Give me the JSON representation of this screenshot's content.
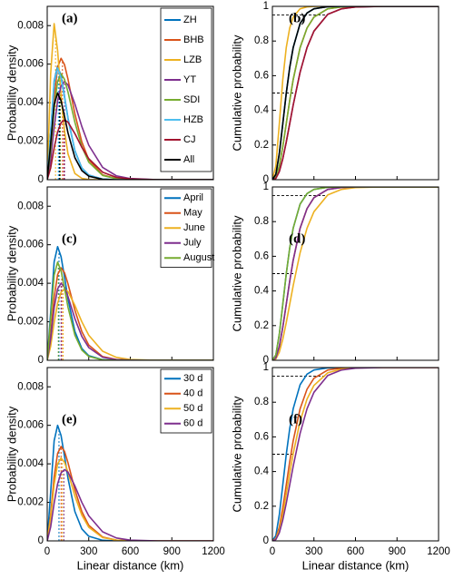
{
  "chart_data": [
    {
      "type": "line",
      "panel_label": "(a)",
      "ylabel": "Probability density",
      "xlim": [
        0,
        1200
      ],
      "xticks": [
        0,
        300,
        600,
        900,
        1200
      ],
      "show_xtick_labels": false,
      "ylim": [
        0,
        0.009
      ],
      "yticks": [
        0,
        0.002,
        0.004,
        0.006,
        0.008
      ],
      "legend": "upper right",
      "x": [
        0,
        25,
        50,
        75,
        100,
        125,
        150,
        200,
        250,
        300,
        400,
        500,
        600,
        800,
        1200
      ],
      "series": [
        {
          "name": "ZH",
          "color": "#0072BD",
          "median": 85,
          "values": [
            0,
            0.00248,
            0.00511,
            0.0059,
            0.00538,
            0.00432,
            0.00319,
            0.0015,
            0.00061,
            0.00024,
            3e-05,
            0,
            0,
            0,
            0
          ]
        },
        {
          "name": "BHB",
          "color": "#D95319",
          "median": 110,
          "values": [
            0,
            0.00176,
            0.00428,
            0.00584,
            0.0063,
            0.00597,
            0.00522,
            0.00341,
            0.00196,
            0.00104,
            0.00025,
            5e-05,
            1e-05,
            0,
            0
          ]
        },
        {
          "name": "LZB",
          "color": "#EDB120",
          "median": 60,
          "values": [
            0,
            0.00551,
            0.0081,
            0.00671,
            0.00438,
            0.00252,
            0.00134,
            0.00032,
            7e-05,
            1e-05,
            0,
            0,
            0,
            0,
            0
          ]
        },
        {
          "name": "YT",
          "color": "#7E2F8E",
          "median": 125,
          "values": [
            0,
            0.00101,
            0.00271,
            0.00409,
            0.00487,
            0.0051,
            0.00492,
            0.00393,
            0.00276,
            0.00179,
            0.00064,
            0.0002,
            6e-05,
            0,
            0
          ]
        },
        {
          "name": "SDI",
          "color": "#77AC30",
          "median": 95,
          "values": [
            0,
            0.00154,
            0.00374,
            0.0051,
            0.0055,
            0.00521,
            0.00455,
            0.00298,
            0.00171,
            0.00091,
            0.00022,
            5e-05,
            1e-05,
            0,
            0
          ]
        },
        {
          "name": "HZB",
          "color": "#4DBEEE",
          "median": 80,
          "values": [
            0,
            0.00244,
            0.00502,
            0.0058,
            0.00529,
            0.00425,
            0.00314,
            0.00147,
            0.0006,
            0.00023,
            3e-05,
            0,
            0,
            0,
            0
          ]
        },
        {
          "name": "CJ",
          "color": "#A2142F",
          "median": 120,
          "values": [
            0,
            0.00061,
            0.00165,
            0.00248,
            0.00296,
            0.0031,
            0.00299,
            0.00239,
            0.00168,
            0.00109,
            0.00039,
            0.00012,
            4e-05,
            0,
            0
          ]
        },
        {
          "name": "All",
          "color": "#000000",
          "median": 90,
          "values": [
            0,
            0.00189,
            0.0039,
            0.0045,
            0.0041,
            0.00329,
            0.00243,
            0.00114,
            0.00047,
            0.00018,
            2e-05,
            0,
            0,
            0,
            0
          ]
        }
      ]
    },
    {
      "type": "line",
      "panel_label": "(b)",
      "ylabel": "Cumulative probability",
      "xlim": [
        0,
        1200
      ],
      "xticks": [
        0,
        300,
        600,
        900,
        1200
      ],
      "show_xtick_labels": false,
      "ylim": [
        0,
        1
      ],
      "yticks": [
        0,
        0.2,
        0.4,
        0.6,
        0.8,
        1
      ],
      "hlines": [
        0.5,
        0.95
      ],
      "x": [
        0,
        25,
        50,
        75,
        100,
        125,
        150,
        200,
        250,
        300,
        400,
        500,
        600,
        800,
        1200
      ],
      "series": [
        {
          "color": "#0072BD",
          "values": [
            0,
            0.031,
            0.151,
            0.323,
            0.498,
            0.647,
            0.762,
            0.901,
            0.962,
            0.986,
            0.998,
            1,
            1,
            1,
            1
          ]
        },
        {
          "color": "#D95319",
          "values": [
            0,
            0.014,
            0.08,
            0.191,
            0.323,
            0.456,
            0.577,
            0.762,
            0.875,
            0.938,
            0.986,
            0.997,
            0.9995,
            1,
            1
          ]
        },
        {
          "color": "#EDB120",
          "values": [
            0,
            0.08,
            0.323,
            0.577,
            0.762,
            0.875,
            0.938,
            0.986,
            0.997,
            0.9995,
            1,
            1,
            1,
            1,
            1
          ]
        },
        {
          "color": "#7E2F8E",
          "values": [
            0,
            0.008,
            0.047,
            0.121,
            0.217,
            0.323,
            0.43,
            0.62,
            0.762,
            0.857,
            0.954,
            0.986,
            0.996,
            1,
            1
          ]
        },
        {
          "color": "#77AC30",
          "values": [
            0,
            0.014,
            0.08,
            0.191,
            0.323,
            0.456,
            0.577,
            0.762,
            0.875,
            0.938,
            0.986,
            0.997,
            0.9995,
            1,
            1
          ]
        },
        {
          "color": "#4DBEEE",
          "values": [
            0,
            0.031,
            0.151,
            0.323,
            0.498,
            0.647,
            0.762,
            0.901,
            0.962,
            0.986,
            0.998,
            1,
            1,
            1,
            1
          ]
        },
        {
          "color": "#A2142F",
          "values": [
            0,
            0.008,
            0.047,
            0.121,
            0.217,
            0.323,
            0.43,
            0.62,
            0.762,
            0.857,
            0.954,
            0.986,
            0.996,
            1,
            1
          ]
        },
        {
          "color": "#000000",
          "values": [
            0,
            0.031,
            0.151,
            0.323,
            0.498,
            0.647,
            0.762,
            0.901,
            0.962,
            0.986,
            0.998,
            1,
            1,
            1,
            1
          ]
        }
      ]
    },
    {
      "type": "line",
      "panel_label": "(c)",
      "ylabel": "Probability density",
      "xlim": [
        0,
        1200
      ],
      "xticks": [
        0,
        300,
        600,
        900,
        1200
      ],
      "show_xtick_labels": false,
      "ylim": [
        0,
        0.009
      ],
      "yticks": [
        0,
        0.002,
        0.004,
        0.006,
        0.008
      ],
      "legend": "upper right",
      "x": [
        0,
        25,
        50,
        75,
        100,
        125,
        150,
        200,
        250,
        300,
        400,
        500,
        600,
        800,
        1200
      ],
      "series": [
        {
          "name": "April",
          "color": "#0072BD",
          "median": 85,
          "values": [
            0,
            0.00248,
            0.00511,
            0.0059,
            0.00538,
            0.00432,
            0.00319,
            0.0015,
            0.00061,
            0.00024,
            3e-05,
            0,
            0,
            0,
            0
          ]
        },
        {
          "name": "May",
          "color": "#D95319",
          "median": 105,
          "values": [
            0,
            0.00134,
            0.00326,
            0.00445,
            0.0048,
            0.00455,
            0.00397,
            0.0026,
            0.00149,
            0.00079,
            0.00019,
            4e-05,
            1e-05,
            0,
            0
          ]
        },
        {
          "name": "June",
          "color": "#EDB120",
          "median": 115,
          "values": [
            0,
            0.00073,
            0.00196,
            0.00296,
            0.00353,
            0.0037,
            0.00357,
            0.00285,
            0.002,
            0.0013,
            0.00047,
            0.00015,
            4e-05,
            0,
            0
          ]
        },
        {
          "name": "July",
          "color": "#7E2F8E",
          "median": 100,
          "values": [
            0,
            0.00112,
            0.00272,
            0.00371,
            0.004,
            0.00379,
            0.00331,
            0.00216,
            0.00124,
            0.00066,
            0.00016,
            3e-05,
            1e-05,
            0,
            0
          ]
        },
        {
          "name": "August",
          "color": "#77AC30",
          "median": 80,
          "values": [
            0,
            0.00215,
            0.00442,
            0.0051,
            0.00465,
            0.00373,
            0.00276,
            0.0013,
            0.00053,
            0.0002,
            2e-05,
            0,
            0,
            0,
            0
          ]
        }
      ]
    },
    {
      "type": "line",
      "panel_label": "(d)",
      "ylabel": "Cumulative probability",
      "xlim": [
        0,
        1200
      ],
      "xticks": [
        0,
        300,
        600,
        900,
        1200
      ],
      "show_xtick_labels": false,
      "ylim": [
        0,
        1
      ],
      "yticks": [
        0,
        0.2,
        0.4,
        0.6,
        0.8,
        1
      ],
      "hlines": [
        0.5,
        0.95
      ],
      "x": [
        0,
        25,
        50,
        75,
        100,
        125,
        150,
        200,
        250,
        300,
        400,
        500,
        600,
        800,
        1200
      ],
      "series": [
        {
          "color": "#0072BD",
          "values": [
            0,
            0.031,
            0.151,
            0.323,
            0.498,
            0.647,
            0.762,
            0.901,
            0.962,
            0.986,
            0.998,
            1,
            1,
            1,
            1
          ]
        },
        {
          "color": "#D95319",
          "values": [
            0,
            0.014,
            0.08,
            0.191,
            0.323,
            0.456,
            0.577,
            0.762,
            0.875,
            0.938,
            0.986,
            0.997,
            0.9995,
            1,
            1
          ]
        },
        {
          "color": "#EDB120",
          "values": [
            0,
            0.008,
            0.047,
            0.121,
            0.217,
            0.323,
            0.43,
            0.62,
            0.762,
            0.857,
            0.954,
            0.986,
            0.996,
            1,
            1
          ]
        },
        {
          "color": "#7E2F8E",
          "values": [
            0,
            0.014,
            0.08,
            0.191,
            0.323,
            0.456,
            0.577,
            0.762,
            0.875,
            0.938,
            0.986,
            0.997,
            0.9995,
            1,
            1
          ]
        },
        {
          "color": "#77AC30",
          "values": [
            0,
            0.031,
            0.151,
            0.323,
            0.498,
            0.647,
            0.762,
            0.901,
            0.962,
            0.986,
            0.998,
            1,
            1,
            1,
            1
          ]
        }
      ]
    },
    {
      "type": "line",
      "panel_label": "(e)",
      "ylabel": "Probability density",
      "xlabel": "Linear distance (km)",
      "xlim": [
        0,
        1200
      ],
      "xticks": [
        0,
        300,
        600,
        900,
        1200
      ],
      "show_xtick_labels": true,
      "ylim": [
        0,
        0.009
      ],
      "yticks": [
        0,
        0.002,
        0.004,
        0.006,
        0.008
      ],
      "legend": "upper right",
      "x": [
        0,
        25,
        50,
        75,
        100,
        125,
        150,
        200,
        250,
        300,
        400,
        500,
        600,
        800,
        1200
      ],
      "series": [
        {
          "name": "30 d",
          "color": "#0072BD",
          "median": 85,
          "values": [
            0,
            0.00253,
            0.0052,
            0.006,
            0.00547,
            0.00439,
            0.00325,
            0.00152,
            0.00062,
            0.00024,
            3e-05,
            0,
            0,
            0,
            0
          ]
        },
        {
          "name": "40 d",
          "color": "#D95319",
          "median": 100,
          "values": [
            0,
            0.00137,
            0.00333,
            0.00454,
            0.0049,
            0.00465,
            0.00406,
            0.00265,
            0.00152,
            0.00081,
            0.0002,
            4e-05,
            1e-05,
            0,
            0
          ]
        },
        {
          "name": "50 d",
          "color": "#EDB120",
          "median": 110,
          "values": [
            0,
            0.0012,
            0.00292,
            0.00399,
            0.0043,
            0.00408,
            0.00356,
            0.00233,
            0.00134,
            0.00071,
            0.00017,
            4e-05,
            1e-05,
            0,
            0
          ]
        },
        {
          "name": "60 d",
          "color": "#7E2F8E",
          "median": 120,
          "values": [
            0,
            0.00073,
            0.00196,
            0.00296,
            0.00353,
            0.0037,
            0.00357,
            0.00285,
            0.002,
            0.0013,
            0.00047,
            0.00015,
            4e-05,
            0,
            0
          ]
        }
      ]
    },
    {
      "type": "line",
      "panel_label": "(f)",
      "ylabel": "Cumulative probability",
      "xlabel": "Linear distance (km)",
      "xlim": [
        0,
        1200
      ],
      "xticks": [
        0,
        300,
        600,
        900,
        1200
      ],
      "show_xtick_labels": true,
      "ylim": [
        0,
        1
      ],
      "yticks": [
        0,
        0.2,
        0.4,
        0.6,
        0.8,
        1
      ],
      "hlines": [
        0.5,
        0.95
      ],
      "x": [
        0,
        25,
        50,
        75,
        100,
        125,
        150,
        200,
        250,
        300,
        400,
        500,
        600,
        800,
        1200
      ],
      "series": [
        {
          "color": "#0072BD",
          "values": [
            0,
            0.031,
            0.151,
            0.323,
            0.498,
            0.647,
            0.762,
            0.901,
            0.962,
            0.986,
            0.998,
            1,
            1,
            1,
            1
          ]
        },
        {
          "color": "#D95319",
          "values": [
            0,
            0.014,
            0.08,
            0.191,
            0.323,
            0.456,
            0.577,
            0.762,
            0.875,
            0.938,
            0.986,
            0.997,
            0.9995,
            1,
            1
          ]
        },
        {
          "color": "#EDB120",
          "values": [
            0,
            0.011,
            0.062,
            0.155,
            0.27,
            0.39,
            0.503,
            0.69,
            0.818,
            0.897,
            0.97,
            0.991,
            0.998,
            1,
            1
          ]
        },
        {
          "color": "#7E2F8E",
          "values": [
            0,
            0.008,
            0.047,
            0.121,
            0.217,
            0.323,
            0.43,
            0.62,
            0.762,
            0.857,
            0.954,
            0.986,
            0.996,
            1,
            1
          ]
        }
      ]
    }
  ]
}
